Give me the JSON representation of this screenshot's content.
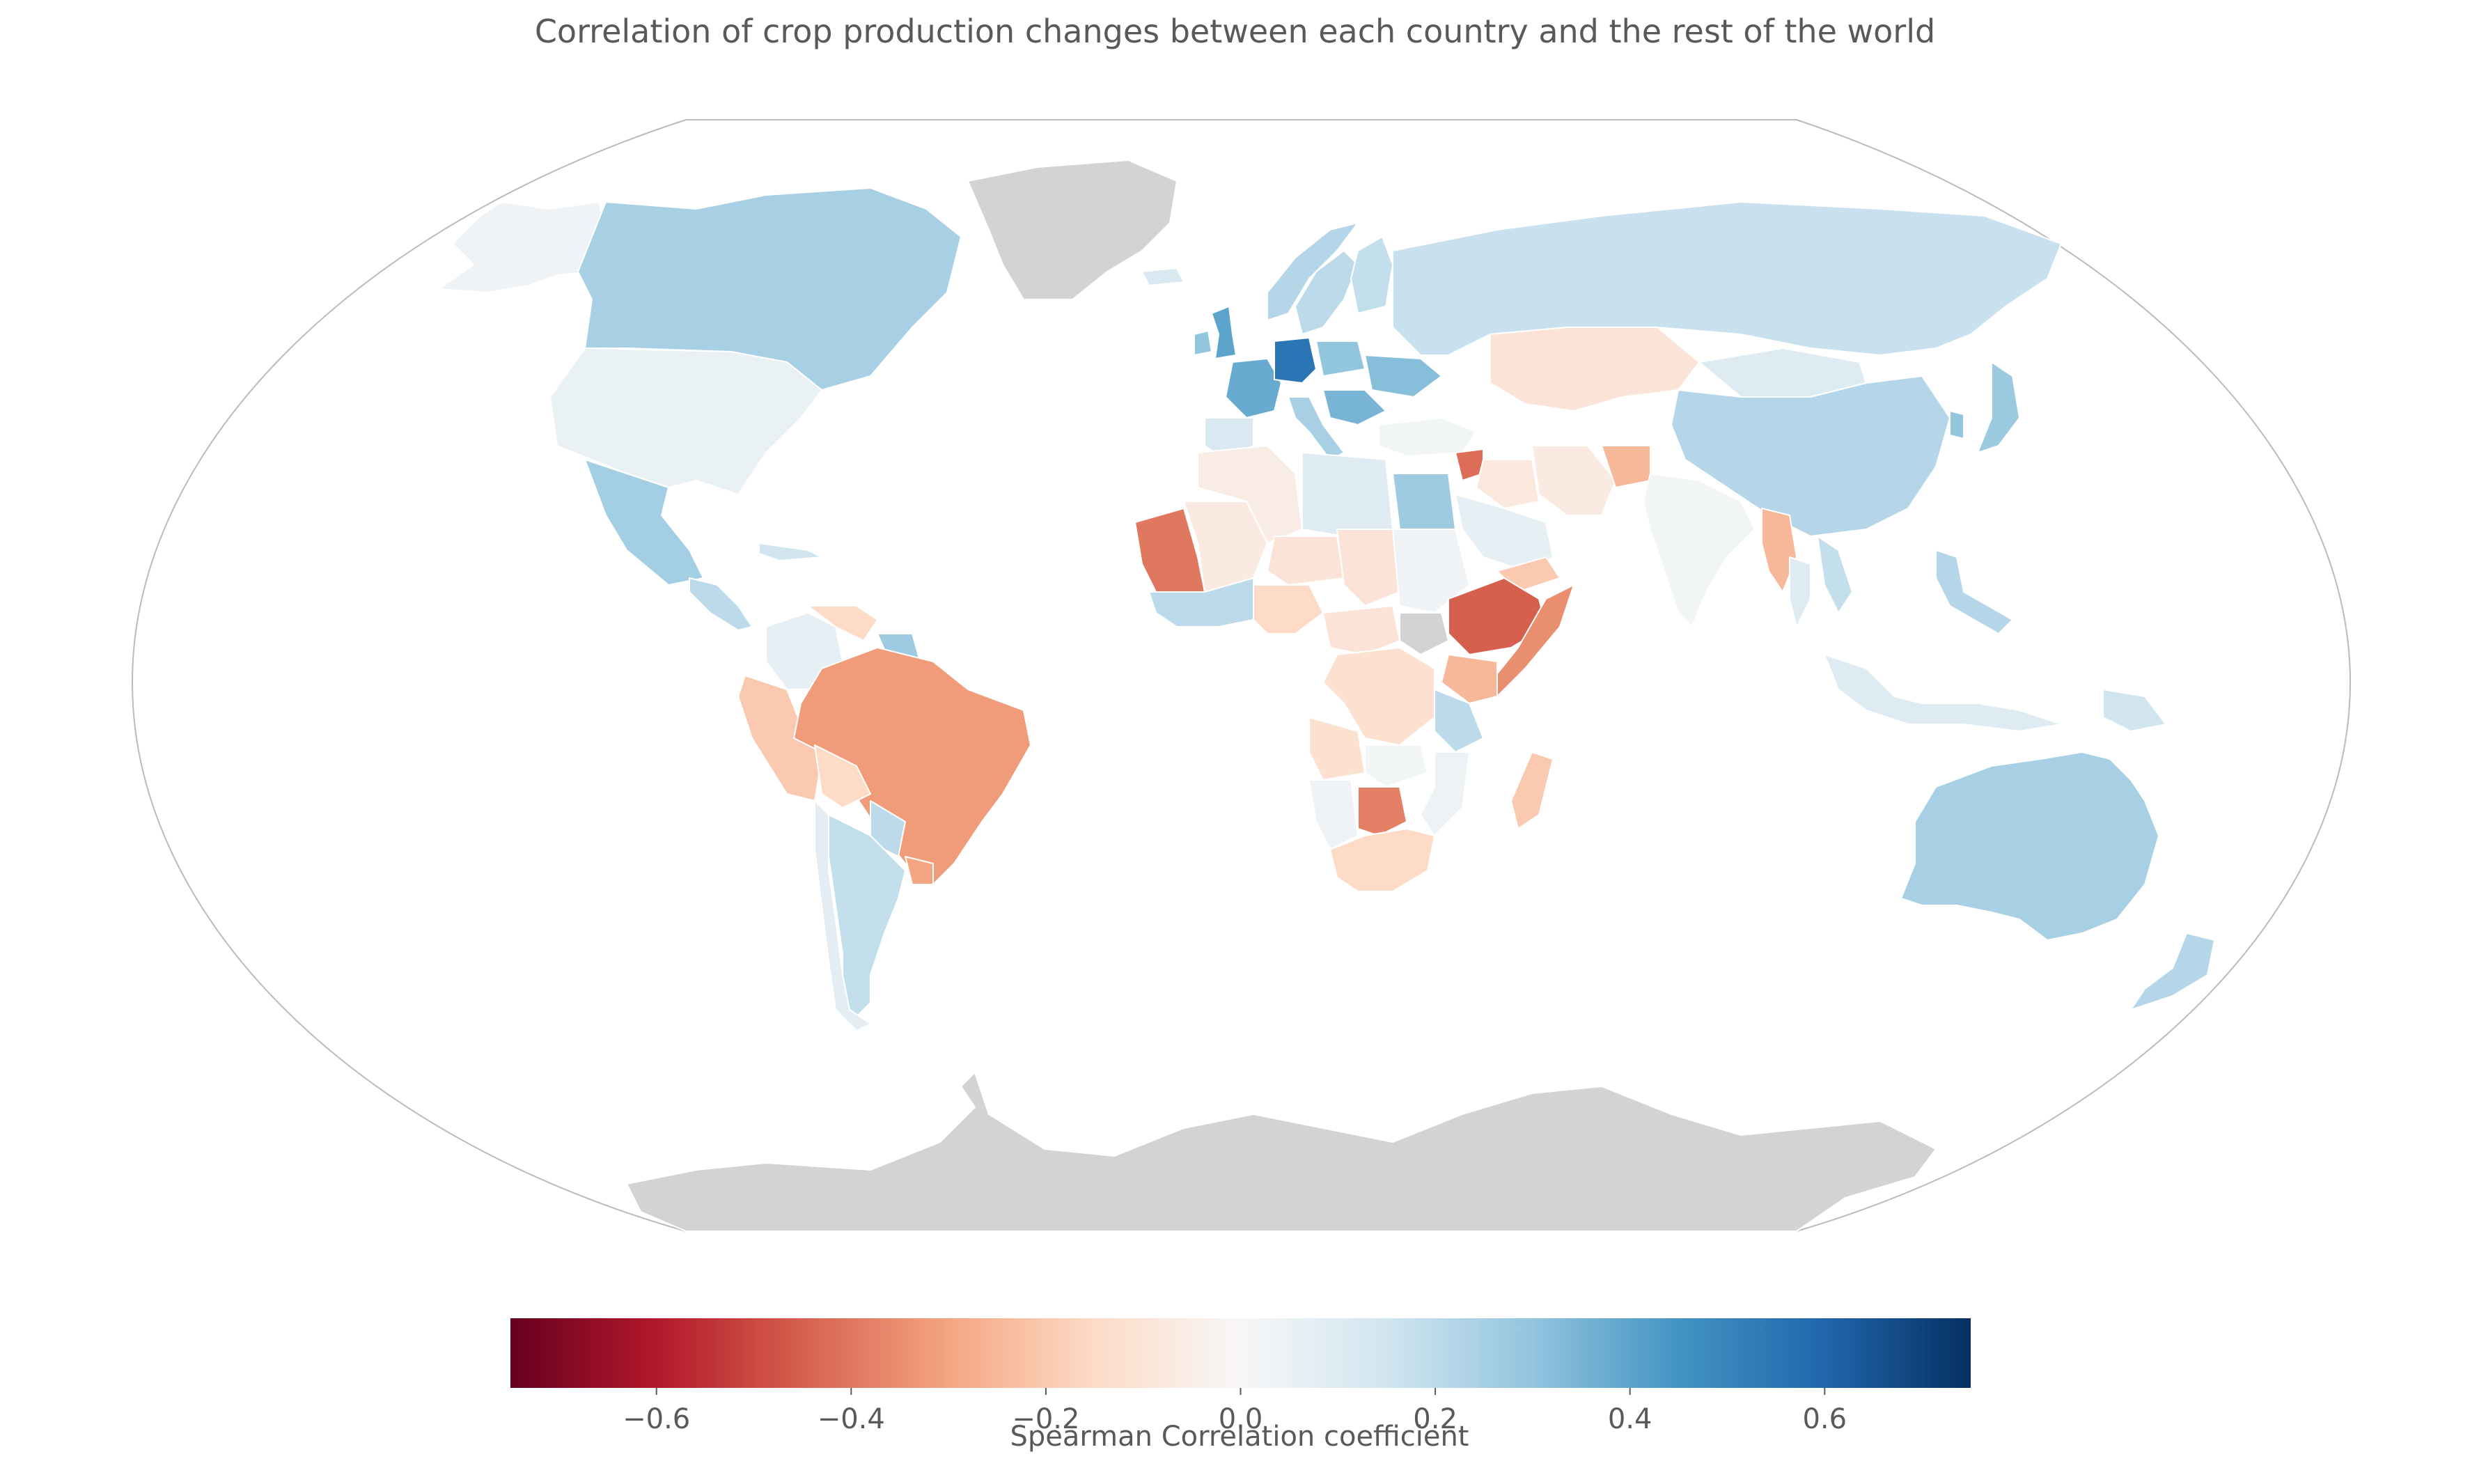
{
  "title": "Correlation of crop production changes between each country and the rest of the world",
  "colorbar": {
    "label": "Spearman Correlation coefficient",
    "range": [
      -0.75,
      0.75
    ],
    "ticks": [
      "−0.6",
      "−0.4",
      "−0.2",
      "0.0",
      "0.2",
      "0.4",
      "0.6"
    ],
    "tick_values": [
      -0.6,
      -0.4,
      -0.2,
      0.0,
      0.2,
      0.4,
      0.6
    ],
    "colormap": "RdBu",
    "stops": [
      "#67001f",
      "#b2182b",
      "#d6604d",
      "#f4a582",
      "#fddbc7",
      "#f7f7f7",
      "#d1e5f0",
      "#92c5de",
      "#4393c3",
      "#2166ac",
      "#053061"
    ]
  },
  "colors": {
    "no_data": "#d3d3d3",
    "border": "#ffffff",
    "outline": "#bbbbbb"
  },
  "regions": [
    {
      "name": "Alaska",
      "value": 0.03
    },
    {
      "name": "Canada",
      "value": 0.25
    },
    {
      "name": "United States",
      "value": 0.05
    },
    {
      "name": "Mexico",
      "value": 0.26
    },
    {
      "name": "Central America",
      "value": 0.2
    },
    {
      "name": "Cuba",
      "value": 0.15
    },
    {
      "name": "Colombia",
      "value": 0.07
    },
    {
      "name": "Venezuela",
      "value": -0.15
    },
    {
      "name": "Guyana",
      "value": 0.27
    },
    {
      "name": "Peru",
      "value": -0.2
    },
    {
      "name": "Brazil",
      "value": -0.32
    },
    {
      "name": "Bolivia",
      "value": -0.15
    },
    {
      "name": "Paraguay",
      "value": 0.2
    },
    {
      "name": "Argentina",
      "value": 0.18
    },
    {
      "name": "Chile",
      "value": 0.08
    },
    {
      "name": "Uruguay",
      "value": -0.3
    },
    {
      "name": "Greenland",
      "value": null
    },
    {
      "name": "Iceland",
      "value": 0.12
    },
    {
      "name": "United Kingdom",
      "value": 0.4
    },
    {
      "name": "Ireland",
      "value": 0.3
    },
    {
      "name": "Norway",
      "value": 0.22
    },
    {
      "name": "Sweden",
      "value": 0.2
    },
    {
      "name": "Finland",
      "value": 0.18
    },
    {
      "name": "France",
      "value": 0.38
    },
    {
      "name": "Spain",
      "value": 0.12
    },
    {
      "name": "Germany",
      "value": 0.55
    },
    {
      "name": "Poland",
      "value": 0.3
    },
    {
      "name": "Ukraine",
      "value": 0.32
    },
    {
      "name": "Italy",
      "value": 0.25
    },
    {
      "name": "Balkans",
      "value": 0.35
    },
    {
      "name": "Turkey",
      "value": 0.02
    },
    {
      "name": "Russia",
      "value": 0.17
    },
    {
      "name": "Kazakhstan",
      "value": -0.1
    },
    {
      "name": "Mongolia",
      "value": 0.1
    },
    {
      "name": "China",
      "value": 0.22
    },
    {
      "name": "Korea",
      "value": 0.3
    },
    {
      "name": "Japan",
      "value": 0.28
    },
    {
      "name": "Syria",
      "value": -0.42
    },
    {
      "name": "Iraq",
      "value": -0.08
    },
    {
      "name": "Iran",
      "value": -0.07
    },
    {
      "name": "Afghanistan",
      "value": -0.25
    },
    {
      "name": "Saudi Arabia",
      "value": 0.07
    },
    {
      "name": "Yemen",
      "value": -0.2
    },
    {
      "name": "India",
      "value": 0.02
    },
    {
      "name": "Myanmar",
      "value": -0.25
    },
    {
      "name": "Thailand",
      "value": 0.1
    },
    {
      "name": "Vietnam",
      "value": 0.18
    },
    {
      "name": "Philippines",
      "value": 0.22
    },
    {
      "name": "Indonesia",
      "value": 0.1
    },
    {
      "name": "Papua New Guinea",
      "value": 0.15
    },
    {
      "name": "Australia",
      "value": 0.25
    },
    {
      "name": "New Zealand",
      "value": 0.22
    },
    {
      "name": "Mauritania",
      "value": -0.4
    },
    {
      "name": "Mali",
      "value": -0.07
    },
    {
      "name": "Algeria",
      "value": -0.06
    },
    {
      "name": "Libya",
      "value": 0.1
    },
    {
      "name": "Egypt",
      "value": 0.27
    },
    {
      "name": "Niger",
      "value": -0.1
    },
    {
      "name": "Chad",
      "value": -0.1
    },
    {
      "name": "Sudan",
      "value": 0.03
    },
    {
      "name": "South Sudan",
      "value": null
    },
    {
      "name": "Ethiopia",
      "value": -0.45
    },
    {
      "name": "Somalia",
      "value": -0.35
    },
    {
      "name": "Kenya",
      "value": -0.25
    },
    {
      "name": "West Africa",
      "value": 0.2
    },
    {
      "name": "Nigeria",
      "value": -0.15
    },
    {
      "name": "Central Africa",
      "value": -0.1
    },
    {
      "name": "DR Congo",
      "value": -0.12
    },
    {
      "name": "Tanzania",
      "value": 0.2
    },
    {
      "name": "Angola",
      "value": -0.12
    },
    {
      "name": "Zambia",
      "value": 0.02
    },
    {
      "name": "Mozambique",
      "value": 0.04
    },
    {
      "name": "Namibia",
      "value": 0.03
    },
    {
      "name": "Botswana",
      "value": -0.38
    },
    {
      "name": "South Africa",
      "value": -0.15
    },
    {
      "name": "Madagascar",
      "value": -0.2
    },
    {
      "name": "Antarctica",
      "value": null
    }
  ]
}
